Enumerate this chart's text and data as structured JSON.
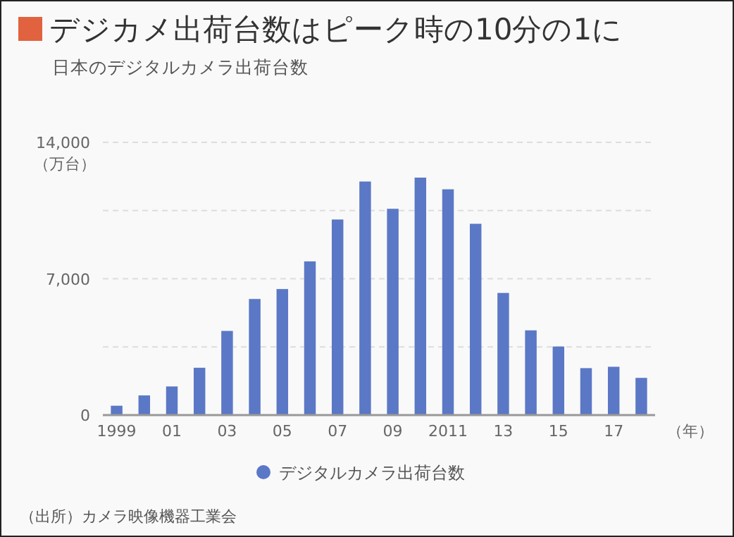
{
  "chart_data": {
    "type": "bar",
    "title": "デジカメ出荷台数はピーク時の10分の1に",
    "subtitle": "日本のデジタルカメラ出荷台数",
    "ylabel": "（万台）",
    "xlabel": "（年）",
    "categories": [
      "1999",
      null,
      "01",
      null,
      "03",
      null,
      "05",
      null,
      "07",
      null,
      "09",
      null,
      "2011",
      null,
      "13",
      null,
      "15",
      null,
      "17",
      null
    ],
    "series": [
      {
        "name": "デジタルカメラ出荷台数",
        "color": "#5b78c6",
        "values": [
          480,
          1010,
          1470,
          2430,
          4320,
          5960,
          6470,
          7890,
          10040,
          11990,
          10590,
          12190,
          11590,
          9820,
          6270,
          4350,
          3520,
          2410,
          2480,
          1910
        ]
      }
    ],
    "ylim": [
      0,
      14000
    ],
    "yticks": [
      0,
      {
        "value": 3500,
        "label": null
      },
      {
        "value": 7000,
        "label": "7,000"
      },
      {
        "value": 10500,
        "label": null
      },
      {
        "value": 14000,
        "label": "14,000"
      }
    ],
    "grid": "y",
    "legend": "bottom",
    "annotations": [
      "（出所）カメラ映像機器工業会"
    ]
  }
}
